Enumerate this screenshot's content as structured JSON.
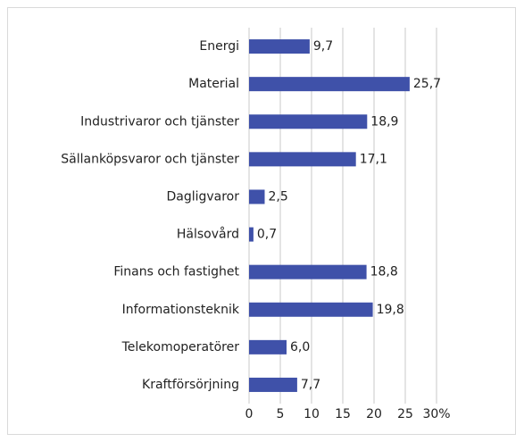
{
  "chart_data": {
    "type": "bar",
    "orientation": "horizontal",
    "categories": [
      "Energi",
      "Material",
      "Industrivaror och tjänster",
      "Sällanköpsvaror och tjänster",
      "Dagligvaror",
      "Hälsovård",
      "Finans och fastighet",
      "Informationsteknik",
      "Telekomoperatörer",
      "Kraftförsörjning"
    ],
    "values": [
      9.7,
      25.7,
      18.9,
      17.1,
      2.5,
      0.7,
      18.8,
      19.8,
      6.0,
      7.7
    ],
    "value_labels": [
      "9,7",
      "25,7",
      "18,9",
      "17,1",
      "2,5",
      "0,7",
      "18,8",
      "19,8",
      "6,0",
      "7,7"
    ],
    "color": "#3f51a9",
    "xlim": [
      0,
      30
    ],
    "xticks": [
      0,
      5,
      10,
      15,
      20,
      25,
      {
        "value": 30,
        "label": "30%"
      }
    ],
    "grid": true
  }
}
